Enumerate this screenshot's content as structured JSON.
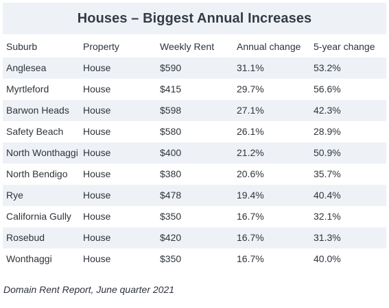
{
  "title": "Houses – Biggest Annual Increases",
  "columns": [
    "Suburb",
    "Property",
    "Weekly Rent",
    "Annual change",
    "5-year change"
  ],
  "rows": [
    {
      "suburb": "Anglesea",
      "property": "House",
      "rent": "$590",
      "annual": "31.1%",
      "five_year": "53.2%"
    },
    {
      "suburb": "Myrtleford",
      "property": "House",
      "rent": "$415",
      "annual": "29.7%",
      "five_year": "56.6%"
    },
    {
      "suburb": "Barwon Heads",
      "property": "House",
      "rent": "$598",
      "annual": "27.1%",
      "five_year": "42.3%"
    },
    {
      "suburb": "Safety Beach",
      "property": "House",
      "rent": "$580",
      "annual": "26.1%",
      "five_year": "28.9%"
    },
    {
      "suburb": "North Wonthaggi",
      "property": "House",
      "rent": "$400",
      "annual": "21.2%",
      "five_year": "50.9%"
    },
    {
      "suburb": "North Bendigo",
      "property": "House",
      "rent": "$380",
      "annual": "20.6%",
      "five_year": "35.7%"
    },
    {
      "suburb": "Rye",
      "property": "House",
      "rent": "$478",
      "annual": "19.4%",
      "five_year": "40.4%"
    },
    {
      "suburb": "California Gully",
      "property": "House",
      "rent": "$350",
      "annual": "16.7%",
      "five_year": "32.1%"
    },
    {
      "suburb": "Rosebud",
      "property": "House",
      "rent": "$420",
      "annual": "16.7%",
      "five_year": "31.3%"
    },
    {
      "suburb": "Wonthaggi",
      "property": "House",
      "rent": "$350",
      "annual": "16.7%",
      "five_year": "40.0%"
    }
  ],
  "footnote": "Domain Rent Report, June quarter 2021"
}
